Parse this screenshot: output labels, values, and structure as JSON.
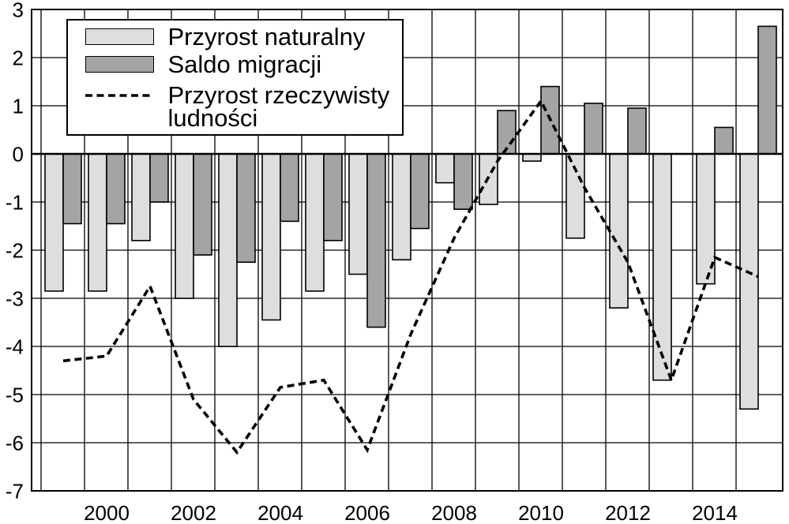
{
  "chart_data": {
    "type": "bar",
    "x": [
      1999,
      2000,
      2001,
      2002,
      2003,
      2004,
      2005,
      2006,
      2007,
      2008,
      2009,
      2010,
      2011,
      2012,
      2013,
      2014,
      2015
    ],
    "x_ticks": [
      2000,
      2002,
      2004,
      2006,
      2008,
      2010,
      2012,
      2014
    ],
    "yticks": [
      3,
      2,
      1,
      0,
      -1,
      -2,
      -3,
      -4,
      -5,
      -6,
      -7
    ],
    "ylim": [
      -7,
      3
    ],
    "grid": true,
    "legend": "top-left",
    "series": [
      {
        "name": "Przyrost naturalny",
        "type": "bar",
        "color": "#dedede",
        "values": [
          -2.85,
          -2.85,
          -1.8,
          -3.0,
          -4.0,
          -3.45,
          -2.85,
          -2.5,
          -2.2,
          -0.6,
          -1.05,
          -0.15,
          -1.75,
          -3.2,
          -4.7,
          -2.7,
          -5.3
        ]
      },
      {
        "name": "Saldo migracji",
        "type": "bar",
        "color": "#a4a4a4",
        "values": [
          -1.45,
          -1.45,
          -1.0,
          -2.1,
          -2.25,
          -1.4,
          -1.8,
          -3.6,
          -1.55,
          -1.15,
          0.9,
          1.4,
          1.05,
          0.95,
          0.0,
          0.55,
          2.65
        ]
      },
      {
        "name": "Przyrost rzeczywisty ludności",
        "type": "line",
        "color": "#000000",
        "values": [
          -4.3,
          -4.2,
          -2.75,
          -5.1,
          -6.2,
          -4.85,
          -4.7,
          -6.15,
          -3.75,
          -1.75,
          -0.15,
          1.1,
          -0.7,
          -2.25,
          -4.7,
          -2.15,
          -2.55
        ]
      }
    ]
  }
}
